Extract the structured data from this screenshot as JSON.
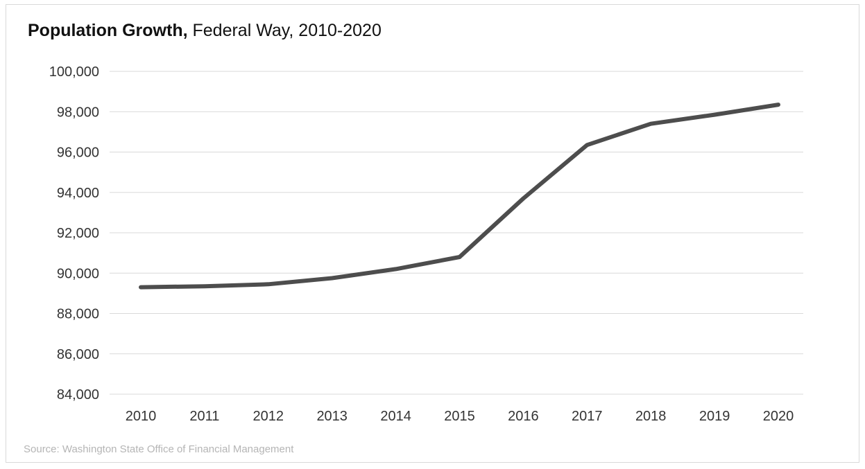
{
  "title": {
    "bold": "Population Growth,",
    "rest": "Federal Way, 2010-2020"
  },
  "source": "Source: Washington State Office of Financial Management",
  "colors": {
    "line": "#4d4d4d",
    "grid": "#d9d9d9",
    "text": "#333333"
  },
  "chart_data": {
    "type": "line",
    "title": "Population Growth, Federal Way, 2010-2020",
    "xlabel": "",
    "ylabel": "",
    "x": [
      "2010",
      "2011",
      "2012",
      "2013",
      "2014",
      "2015",
      "2016",
      "2017",
      "2018",
      "2019",
      "2020"
    ],
    "series": [
      {
        "values": [
          89300,
          89350,
          89450,
          89750,
          90200,
          90800,
          93700,
          96350,
          97400,
          97850,
          98350
        ]
      }
    ],
    "ylim": [
      84000,
      100000
    ],
    "yticks": [
      84000,
      86000,
      88000,
      90000,
      92000,
      94000,
      96000,
      98000,
      100000
    ],
    "ytick_labels": [
      "84,000",
      "86,000",
      "88,000",
      "90,000",
      "92,000",
      "94,000",
      "96,000",
      "98,000",
      "100,000"
    ],
    "grid": true,
    "legend": "none"
  }
}
